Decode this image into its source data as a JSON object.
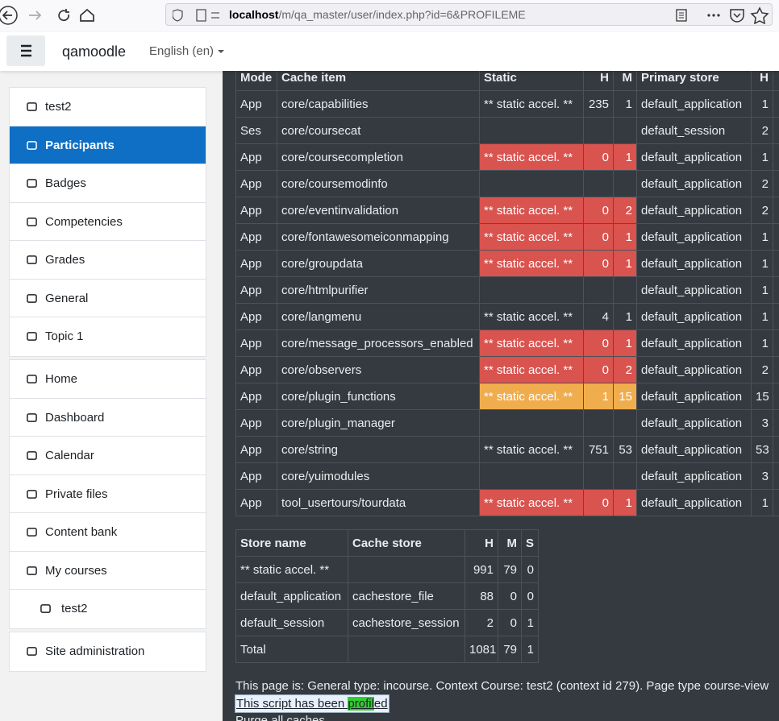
{
  "browser": {
    "url_host": "localhost",
    "url_path": "/m/qa_master/user/index.php?id=6&PROFILEME"
  },
  "navbar": {
    "site_name": "qamoodle",
    "language": "English (en)"
  },
  "sidebar": {
    "active": [
      0,
      1
    ],
    "blocks": [
      [
        "test2",
        "Participants",
        "Badges",
        "Competencies",
        "Grades",
        "General",
        "Topic 1"
      ],
      [
        "Home",
        "Dashboard",
        "Calendar",
        "Private files",
        "Content bank",
        "My courses",
        "test2"
      ],
      [
        "Site administration"
      ]
    ]
  },
  "cache_table": {
    "headers": [
      "Mode",
      "Cache item",
      "Static",
      "H",
      "M",
      "Primary store",
      "H"
    ],
    "rows": [
      {
        "cells": [
          "App",
          "core/capabilities",
          "** static accel. **",
          235,
          1,
          "default_application",
          1
        ]
      },
      {
        "cells": [
          "Ses",
          "core/coursecat",
          null,
          null,
          null,
          "default_session",
          2
        ]
      },
      {
        "cells": [
          "App",
          "core/coursecompletion",
          "** static accel. **",
          0,
          1,
          "default_application",
          1
        ],
        "color": "#d9534f"
      },
      {
        "cells": [
          "App",
          "core/coursemodinfo",
          null,
          null,
          null,
          "default_application",
          2
        ]
      },
      {
        "cells": [
          "App",
          "core/eventinvalidation",
          "** static accel. **",
          0,
          2,
          "default_application",
          2
        ],
        "color": "#d9534f"
      },
      {
        "cells": [
          "App",
          "core/fontawesomeiconmapping",
          "** static accel. **",
          0,
          1,
          "default_application",
          1
        ],
        "color": "#d9534f"
      },
      {
        "cells": [
          "App",
          "core/groupdata",
          "** static accel. **",
          0,
          1,
          "default_application",
          1
        ],
        "color": "#d9534f"
      },
      {
        "cells": [
          "App",
          "core/htmlpurifier",
          null,
          null,
          null,
          "default_application",
          1
        ]
      },
      {
        "cells": [
          "App",
          "core/langmenu",
          "** static accel. **",
          4,
          1,
          "default_application",
          1
        ]
      },
      {
        "cells": [
          "App",
          "core/message_processors_enabled",
          "** static accel. **",
          0,
          1,
          "default_application",
          1
        ],
        "color": "#d9534f"
      },
      {
        "cells": [
          "App",
          "core/observers",
          "** static accel. **",
          0,
          2,
          "default_application",
          2
        ],
        "color": "#d9534f"
      },
      {
        "cells": [
          "App",
          "core/plugin_functions",
          "** static accel. **",
          1,
          15,
          "default_application",
          15
        ],
        "color": "#f0ad4e"
      },
      {
        "cells": [
          "App",
          "core/plugin_manager",
          null,
          null,
          null,
          "default_application",
          3
        ]
      },
      {
        "cells": [
          "App",
          "core/string",
          "** static accel. **",
          751,
          53,
          "default_application",
          53
        ]
      },
      {
        "cells": [
          "App",
          "core/yuimodules",
          null,
          null,
          null,
          "default_application",
          3
        ]
      },
      {
        "cells": [
          "App",
          "tool_usertours/tourdata",
          "** static accel. **",
          0,
          1,
          "default_application",
          1
        ],
        "color": "#d9534f"
      }
    ]
  },
  "store_table": {
    "headers": [
      "Store name",
      "Cache store",
      "H",
      "M",
      "S"
    ],
    "rows": [
      [
        "** static accel. **",
        null,
        991,
        79,
        0
      ],
      [
        "default_application",
        "cachestore_file",
        88,
        0,
        0
      ],
      [
        "default_session",
        "cachestore_session",
        2,
        0,
        1
      ],
      [
        "Total",
        null,
        1081,
        79,
        1
      ]
    ]
  },
  "footer": {
    "page_info": "This page is: General type: incourse. Context Course: test2 (context id 279). Page type course-view",
    "profiled": [
      "This script has been ",
      "profil",
      "ed"
    ],
    "purge": "Purge all caches"
  }
}
